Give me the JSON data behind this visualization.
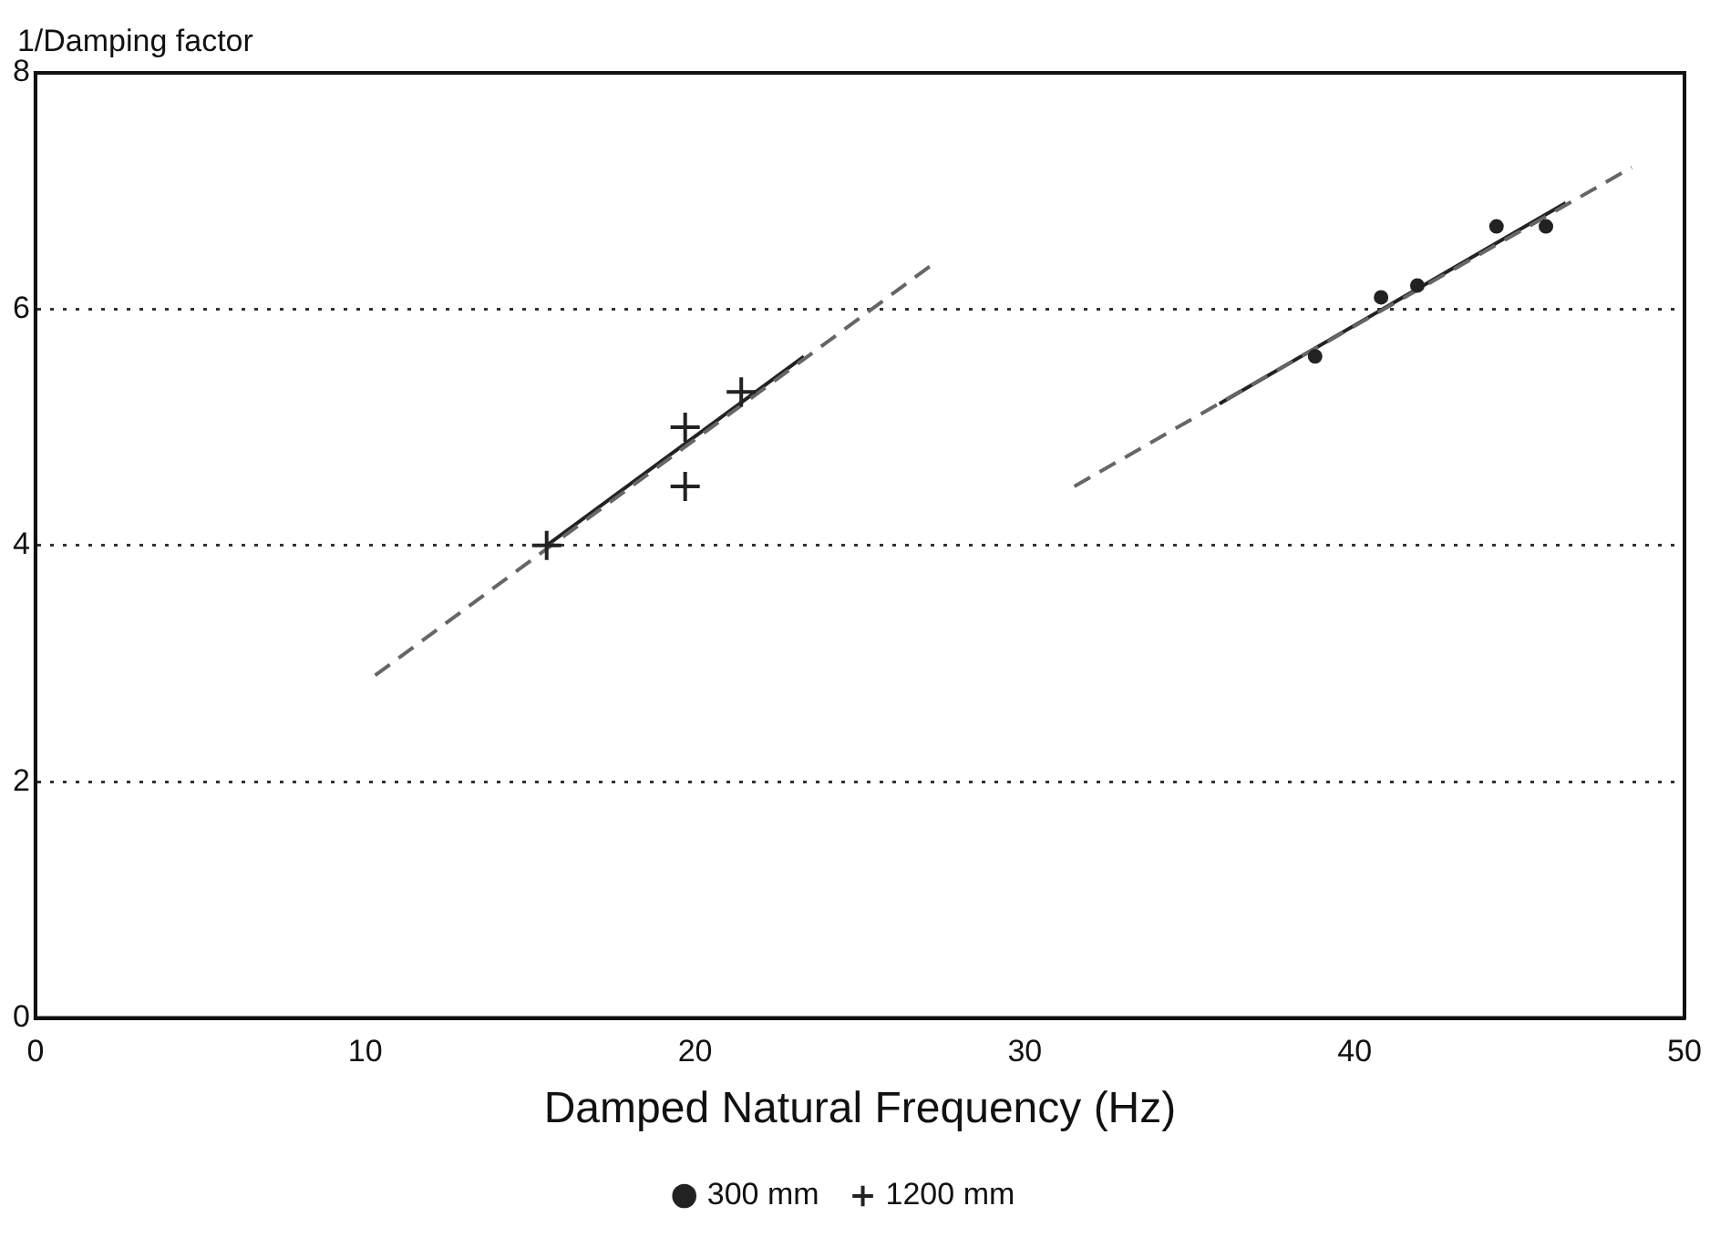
{
  "chart_data": {
    "type": "scatter",
    "xlabel": "Damped Natural Frequency (Hz)",
    "ylabel": "1/Damping factor",
    "xlim": [
      0,
      50
    ],
    "xticks": [
      0,
      10,
      20,
      30,
      40,
      50
    ],
    "ylim": [
      0,
      8
    ],
    "yticks": [
      0,
      2,
      4,
      6,
      8
    ],
    "grid": "y",
    "legend": "bottom",
    "series": [
      {
        "name": "300 mm",
        "type": "scatter",
        "marker": "circle",
        "color": "#222222",
        "x": [
          38.8,
          40.8,
          41.9,
          44.3,
          45.8
        ],
        "values": [
          5.6,
          6.1,
          6.2,
          6.7,
          6.7
        ]
      },
      {
        "name": "1200 mm",
        "type": "scatter",
        "marker": "cross",
        "color": "#222222",
        "x": [
          15.5,
          19.7,
          19.7,
          21.4
        ],
        "values": [
          4.0,
          5.0,
          4.5,
          5.3
        ]
      },
      {
        "type": "line",
        "marker": "none",
        "line_style": "dashed",
        "color": "#666666",
        "x": [
          31.5,
          48.4
        ],
        "values": [
          4.5,
          7.2
        ]
      },
      {
        "type": "line",
        "marker": "none",
        "line_style": "solid",
        "color": "#222222",
        "x": [
          35.9,
          46.4
        ],
        "values": [
          5.2,
          6.9
        ]
      },
      {
        "type": "line",
        "marker": "none",
        "line_style": "dashed",
        "color": "#666666",
        "x": [
          10.3,
          27.3
        ],
        "values": [
          2.9,
          6.4
        ]
      },
      {
        "type": "line",
        "marker": "none",
        "line_style": "solid",
        "color": "#222222",
        "x": [
          15.5,
          23.3
        ],
        "values": [
          4.0,
          5.6
        ]
      }
    ]
  }
}
